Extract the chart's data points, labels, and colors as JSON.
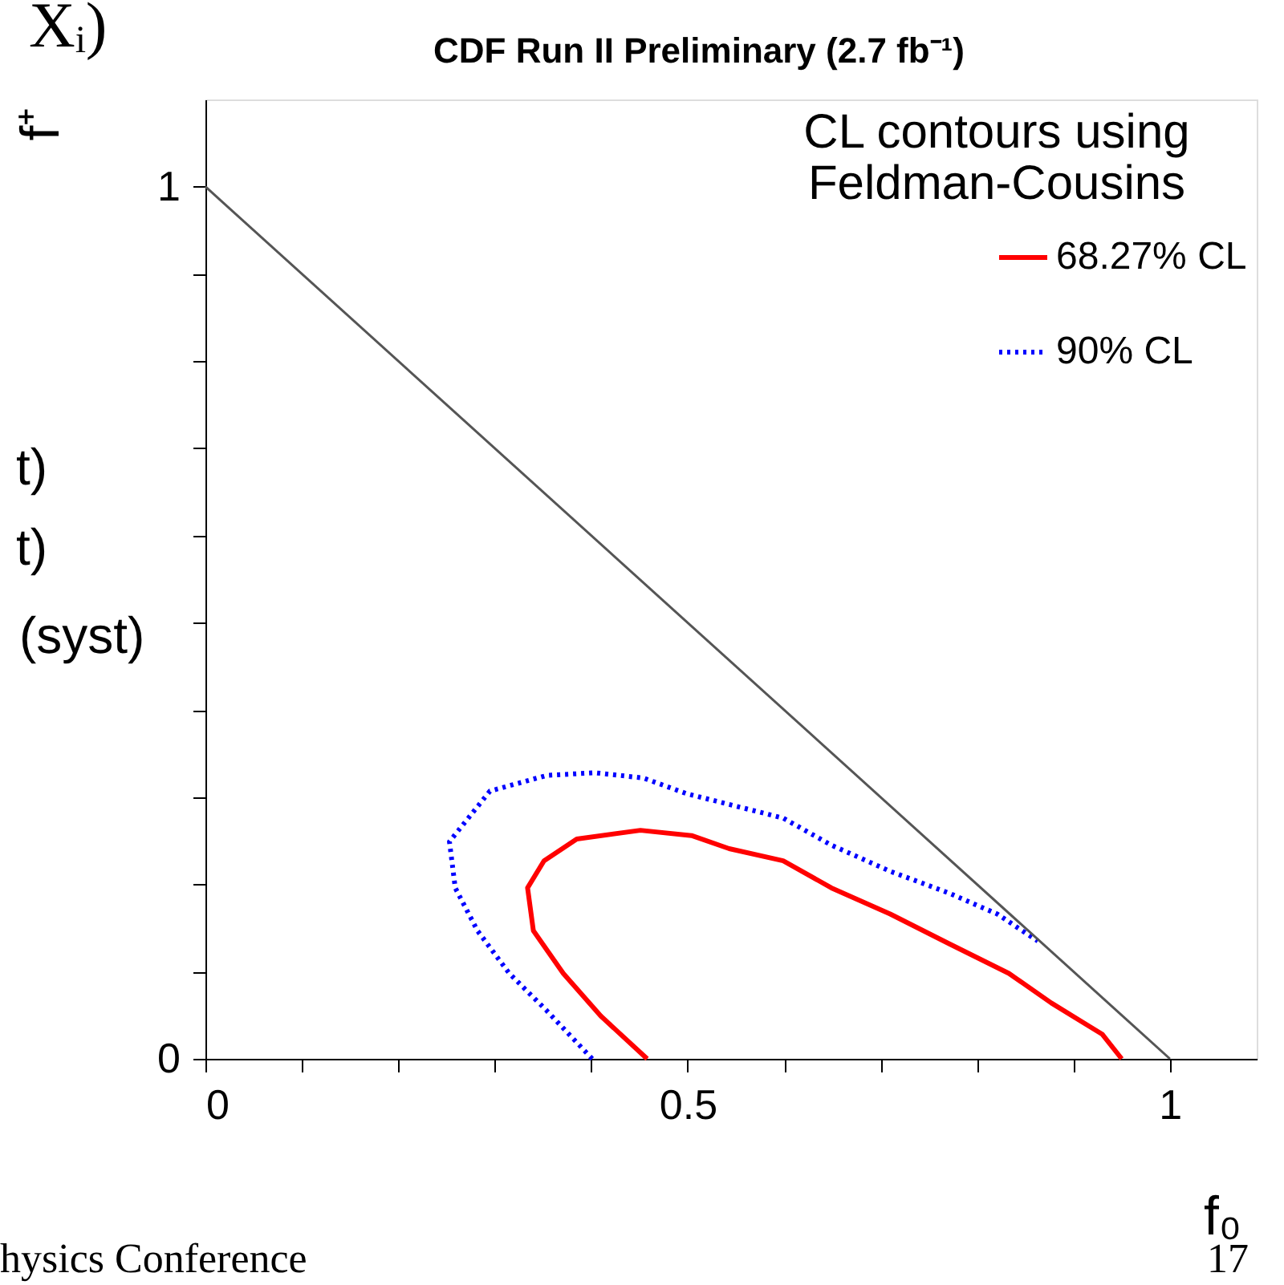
{
  "chart_data": {
    "type": "line",
    "title": "CDF Run II Preliminary (2.7 fb⁻¹)",
    "xlabel": "f₀",
    "ylabel": "f⁺",
    "legend_title": "CL contours using Feldman-Cousins",
    "legend": "top right",
    "grid": false,
    "marker": "none",
    "xlim": [
      0,
      1.09
    ],
    "ylim": [
      0,
      1.1
    ],
    "xticks": [
      0,
      {
        "value": 0.1,
        "label": null
      },
      {
        "value": 0.2,
        "label": null
      },
      {
        "value": 0.3,
        "label": null
      },
      {
        "value": 0.4,
        "label": null
      },
      0.5,
      {
        "value": 0.6,
        "label": null
      },
      {
        "value": 0.7,
        "label": null
      },
      {
        "value": 0.8,
        "label": null
      },
      {
        "value": 0.9,
        "label": null
      },
      1
    ],
    "yticks": [
      0,
      {
        "value": 0.1,
        "label": null
      },
      {
        "value": 0.2,
        "label": null
      },
      {
        "value": 0.3,
        "label": null
      },
      {
        "value": 0.4,
        "label": null
      },
      {
        "value": 0.5,
        "label": null
      },
      {
        "value": 0.6,
        "label": null
      },
      {
        "value": 0.7,
        "label": null
      },
      {
        "value": 0.8,
        "label": null
      },
      {
        "value": 0.9,
        "label": null
      },
      1
    ],
    "series": [
      {
        "name": "68.27% CL",
        "color": "#ff0000",
        "line_style": "solid",
        "x": [
          0.458,
          0.41,
          0.371,
          0.34,
          0.334,
          0.351,
          0.385,
          0.451,
          0.504,
          0.543,
          0.599,
          0.649,
          0.71,
          0.771,
          0.833,
          0.877,
          0.93,
          0.95
        ],
        "values": [
          0,
          0.049,
          0.098,
          0.147,
          0.196,
          0.227,
          0.252,
          0.262,
          0.256,
          0.241,
          0.227,
          0.196,
          0.166,
          0.132,
          0.098,
          0.064,
          0.028,
          0
        ]
      },
      {
        "name": "90% CL",
        "color": "#0000ff",
        "line_style": "dotted",
        "x": [
          0.401,
          0.354,
          0.315,
          0.282,
          0.259,
          0.253,
          0.295,
          0.354,
          0.404,
          0.454,
          0.499,
          0.599,
          0.649,
          0.71,
          0.771,
          0.821,
          0.863
        ],
        "values": [
          0,
          0.055,
          0.098,
          0.147,
          0.196,
          0.249,
          0.307,
          0.325,
          0.328,
          0.322,
          0.304,
          0.276,
          0.245,
          0.215,
          0.19,
          0.166,
          0.135
        ]
      },
      {
        "color": "#555555",
        "line_style": "solid",
        "x": [
          0,
          1
        ],
        "values": [
          1,
          0
        ]
      }
    ],
    "annotations": [
      "Xᵢ)",
      "t)",
      "t)",
      "(syst)",
      "hysics Conference",
      "17"
    ]
  }
}
